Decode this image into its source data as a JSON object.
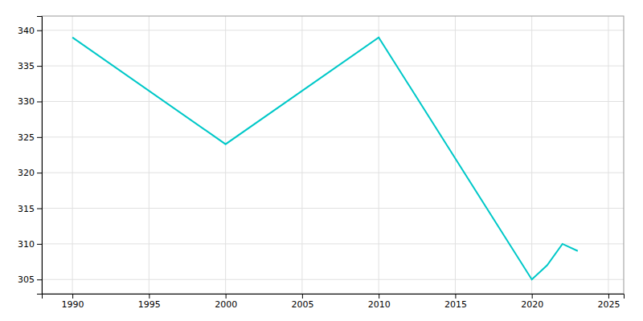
{
  "chart_data": {
    "type": "line",
    "x": [
      1990,
      2000,
      2010,
      2020,
      2021,
      2022,
      2023
    ],
    "values": [
      339,
      324,
      339,
      305,
      307,
      310,
      309
    ],
    "color": "#00c8c8",
    "xlim": [
      1988,
      2026
    ],
    "ylim": [
      303,
      342
    ],
    "xticks": [
      1990,
      1995,
      2000,
      2005,
      2010,
      2015,
      2020,
      2025
    ],
    "yticks": [
      305,
      310,
      315,
      320,
      325,
      330,
      335,
      340
    ],
    "grid": true
  }
}
